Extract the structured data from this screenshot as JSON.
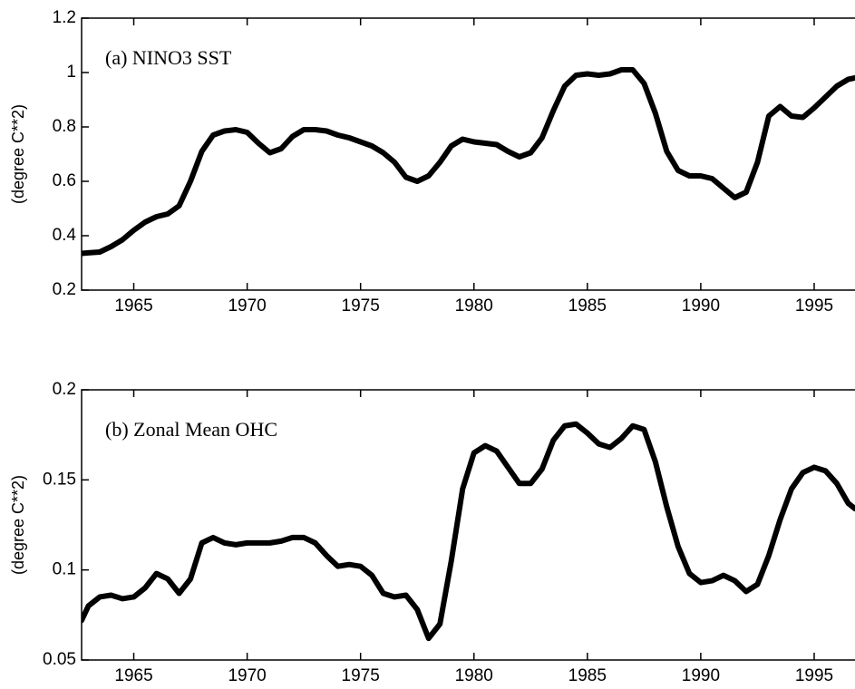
{
  "chart_data": [
    {
      "type": "line",
      "annotation": "(a) NINO3 SST",
      "ylabel": "(degree C**2)",
      "x": [
        1962.7,
        1963,
        1963.5,
        1964,
        1964.5,
        1965,
        1965.5,
        1966,
        1966.5,
        1967,
        1967.5,
        1968,
        1968.5,
        1969,
        1969.5,
        1970,
        1970.5,
        1971,
        1971.5,
        1972,
        1972.5,
        1973,
        1973.5,
        1974,
        1974.5,
        1975,
        1975.5,
        1976,
        1976.5,
        1977,
        1977.5,
        1978,
        1978.5,
        1979,
        1979.5,
        1980,
        1980.5,
        1981,
        1981.5,
        1982,
        1982.5,
        1983,
        1983.5,
        1984,
        1984.5,
        1985,
        1985.5,
        1986,
        1986.5,
        1987,
        1987.5,
        1988,
        1988.5,
        1989,
        1989.5,
        1990,
        1990.5,
        1991,
        1991.5,
        1992,
        1992.5,
        1993,
        1993.5,
        1994,
        1994.5,
        1995,
        1995.5,
        1996,
        1996.5,
        1996.8
      ],
      "values": [
        0.335,
        0.337,
        0.34,
        0.36,
        0.385,
        0.42,
        0.45,
        0.47,
        0.48,
        0.51,
        0.6,
        0.71,
        0.77,
        0.785,
        0.79,
        0.78,
        0.74,
        0.705,
        0.72,
        0.765,
        0.79,
        0.79,
        0.785,
        0.77,
        0.76,
        0.745,
        0.73,
        0.705,
        0.67,
        0.615,
        0.6,
        0.62,
        0.67,
        0.73,
        0.755,
        0.745,
        0.74,
        0.735,
        0.71,
        0.69,
        0.705,
        0.76,
        0.86,
        0.95,
        0.99,
        0.995,
        0.99,
        0.995,
        1.01,
        1.01,
        0.96,
        0.85,
        0.71,
        0.64,
        0.62,
        0.62,
        0.61,
        0.575,
        0.54,
        0.56,
        0.67,
        0.84,
        0.875,
        0.84,
        0.835,
        0.87,
        0.91,
        0.95,
        0.975,
        0.98
      ],
      "color": "#000000",
      "xlim": [
        1962.7,
        1996.8
      ],
      "xticks": [
        1965,
        1970,
        1975,
        1980,
        1985,
        1990,
        1995
      ],
      "ylim": [
        0.2,
        1.2
      ],
      "yticks": [
        0.2,
        0.4,
        0.6,
        0.8,
        1,
        1.2
      ]
    },
    {
      "type": "line",
      "annotation": "(b) Zonal Mean OHC",
      "ylabel": "(degree C**2)",
      "x": [
        1962.7,
        1963,
        1963.5,
        1964,
        1964.5,
        1965,
        1965.5,
        1966,
        1966.5,
        1967,
        1967.5,
        1968,
        1968.5,
        1969,
        1969.5,
        1970,
        1970.5,
        1971,
        1971.5,
        1972,
        1972.5,
        1973,
        1973.5,
        1974,
        1974.5,
        1975,
        1975.5,
        1976,
        1976.5,
        1977,
        1977.5,
        1978,
        1978.5,
        1979,
        1979.5,
        1980,
        1980.5,
        1981,
        1981.5,
        1982,
        1982.5,
        1983,
        1983.5,
        1984,
        1984.5,
        1985,
        1985.5,
        1986,
        1986.5,
        1987,
        1987.5,
        1988,
        1988.5,
        1989,
        1989.5,
        1990,
        1990.5,
        1991,
        1991.5,
        1992,
        1992.5,
        1993,
        1993.5,
        1994,
        1994.5,
        1995,
        1995.5,
        1996,
        1996.5,
        1996.8
      ],
      "values": [
        0.072,
        0.08,
        0.085,
        0.086,
        0.084,
        0.085,
        0.09,
        0.098,
        0.095,
        0.087,
        0.095,
        0.115,
        0.118,
        0.115,
        0.114,
        0.115,
        0.115,
        0.115,
        0.116,
        0.118,
        0.118,
        0.115,
        0.108,
        0.102,
        0.103,
        0.102,
        0.097,
        0.087,
        0.085,
        0.086,
        0.078,
        0.062,
        0.07,
        0.105,
        0.145,
        0.165,
        0.169,
        0.166,
        0.157,
        0.148,
        0.148,
        0.156,
        0.172,
        0.18,
        0.181,
        0.176,
        0.17,
        0.168,
        0.173,
        0.18,
        0.178,
        0.16,
        0.135,
        0.113,
        0.098,
        0.093,
        0.094,
        0.097,
        0.094,
        0.088,
        0.092,
        0.108,
        0.128,
        0.145,
        0.154,
        0.157,
        0.155,
        0.148,
        0.137,
        0.134
      ],
      "color": "#000000",
      "xlim": [
        1962.7,
        1996.8
      ],
      "xticks": [
        1965,
        1970,
        1975,
        1980,
        1985,
        1990,
        1995
      ],
      "ylim": [
        0.05,
        0.2
      ],
      "yticks": [
        0.05,
        0.1,
        0.15,
        0.2
      ]
    }
  ]
}
